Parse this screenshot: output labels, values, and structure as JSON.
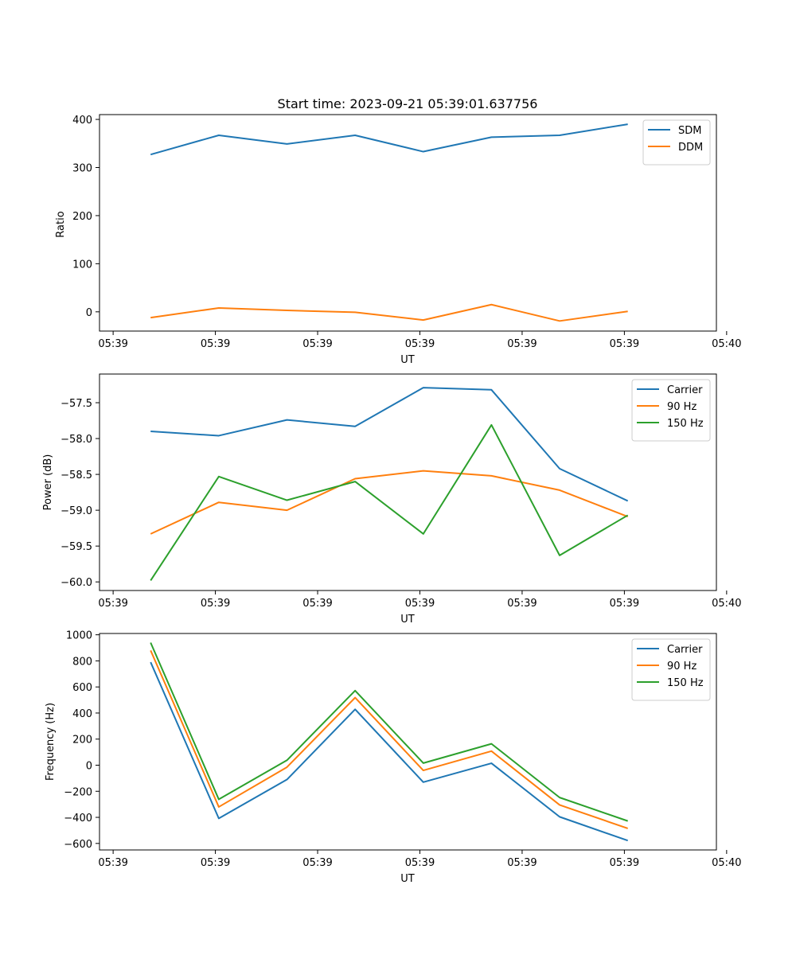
{
  "colors": {
    "blue": "#1f77b4",
    "orange": "#ff7f0e",
    "green": "#2ca02c"
  },
  "chart_data": [
    {
      "type": "line",
      "title": "Start time: 2023-09-21 05:39:01.637756",
      "xlabel": "UT",
      "ylabel": "Ratio",
      "x": [
        1,
        2,
        3,
        4,
        5,
        6,
        7,
        8
      ],
      "xlim": [
        0.25,
        9.3
      ],
      "xticks": [
        0.45,
        1.95,
        3.45,
        4.95,
        6.45,
        7.95,
        9.45
      ],
      "xtick_labels": [
        "05:39",
        "05:39",
        "05:39",
        "05:39",
        "05:39",
        "05:39",
        "05:40"
      ],
      "ylim": [
        -40,
        410
      ],
      "yticks": [
        0,
        100,
        200,
        300,
        400
      ],
      "ytick_labels": [
        "0",
        "100",
        "200",
        "300",
        "400"
      ],
      "legend_loc": "top-right",
      "series": [
        {
          "name": "SDM",
          "color": "#1f77b4",
          "values": [
            327,
            367,
            349,
            367,
            333,
            363,
            367,
            390
          ]
        },
        {
          "name": "DDM",
          "color": "#ff7f0e",
          "values": [
            -12,
            8,
            3,
            -1,
            -17,
            15,
            -19,
            1
          ]
        }
      ]
    },
    {
      "type": "line",
      "title": "",
      "xlabel": "UT",
      "ylabel": "Power (dB)",
      "x": [
        1,
        2,
        3,
        4,
        5,
        6,
        7,
        8
      ],
      "xlim": [
        0.25,
        9.3
      ],
      "xticks": [
        0.45,
        1.95,
        3.45,
        4.95,
        6.45,
        7.95,
        9.45
      ],
      "xtick_labels": [
        "05:39",
        "05:39",
        "05:39",
        "05:39",
        "05:39",
        "05:39",
        "05:40"
      ],
      "ylim": [
        -60.12,
        -57.1
      ],
      "yticks": [
        -60.0,
        -59.5,
        -59.0,
        -58.5,
        -58.0,
        -57.5
      ],
      "ytick_labels": [
        "−60.0",
        "−59.5",
        "−59.0",
        "−58.5",
        "−58.0",
        "−57.5"
      ],
      "legend_loc": "top-right",
      "series": [
        {
          "name": "Carrier",
          "color": "#1f77b4",
          "values": [
            -57.9,
            -57.96,
            -57.74,
            -57.83,
            -57.29,
            -57.32,
            -58.42,
            -58.87
          ]
        },
        {
          "name": "90 Hz",
          "color": "#ff7f0e",
          "values": [
            -59.33,
            -58.89,
            -59.0,
            -58.56,
            -58.45,
            -58.52,
            -58.72,
            -59.09
          ]
        },
        {
          "name": "150 Hz",
          "color": "#2ca02c",
          "values": [
            -59.98,
            -58.53,
            -58.86,
            -58.6,
            -59.33,
            -57.81,
            -59.63,
            -59.07
          ]
        }
      ]
    },
    {
      "type": "line",
      "title": "",
      "xlabel": "UT",
      "ylabel": "Frequency (Hz)",
      "x": [
        1,
        2,
        3,
        4,
        5,
        6,
        7,
        8
      ],
      "xlim": [
        0.25,
        9.3
      ],
      "xticks": [
        0.45,
        1.95,
        3.45,
        4.95,
        6.45,
        7.95,
        9.45
      ],
      "xtick_labels": [
        "05:39",
        "05:39",
        "05:39",
        "05:39",
        "05:39",
        "05:39",
        "05:40"
      ],
      "ylim": [
        -650,
        1010
      ],
      "yticks": [
        -600,
        -400,
        -200,
        0,
        200,
        400,
        600,
        800,
        1000
      ],
      "ytick_labels": [
        "−600",
        "−400",
        "−200",
        "0",
        "200",
        "400",
        "600",
        "800",
        "1000"
      ],
      "legend_loc": "top-right",
      "series": [
        {
          "name": "Carrier",
          "color": "#1f77b4",
          "values": [
            790,
            -408,
            -110,
            428,
            -130,
            15,
            -396,
            -578
          ]
        },
        {
          "name": "90 Hz",
          "color": "#ff7f0e",
          "values": [
            880,
            -320,
            -15,
            518,
            -40,
            108,
            -305,
            -485
          ]
        },
        {
          "name": "150 Hz",
          "color": "#2ca02c",
          "values": [
            940,
            -262,
            38,
            572,
            16,
            164,
            -248,
            -428
          ]
        }
      ]
    }
  ]
}
